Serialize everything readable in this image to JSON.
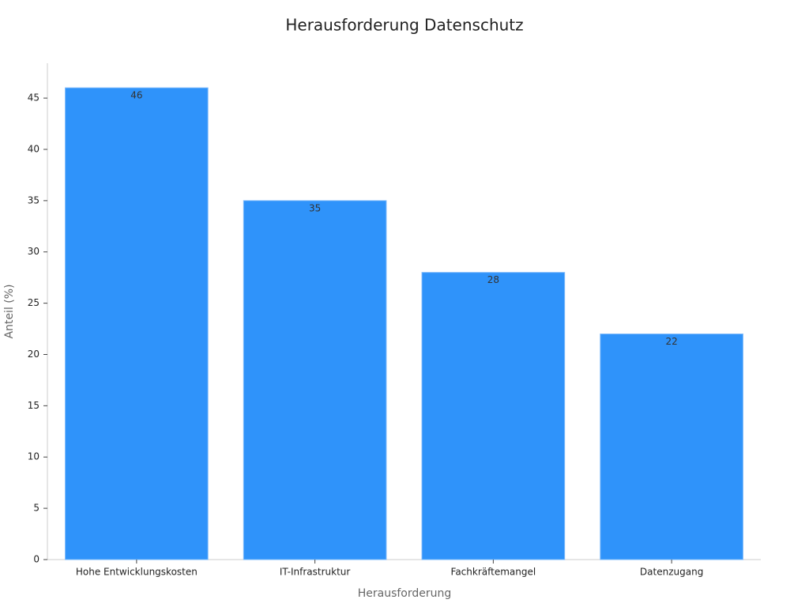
{
  "chart_data": {
    "type": "bar",
    "title": "Herausforderung Datenschutz",
    "x_label": "Herausforderung",
    "y_label": "Anteil (%)",
    "categories": [
      "Hohe Entwicklungskosten",
      "IT-Infrastruktur",
      "Fachkräftemangel",
      "Datenzugang"
    ],
    "values": [
      46,
      35,
      28,
      22
    ],
    "color": "#2f93fa",
    "ylim": [
      0,
      48.4
    ],
    "yticks": [
      0,
      5,
      10,
      15,
      20,
      25,
      30,
      35,
      40,
      45
    ],
    "grid": false
  }
}
